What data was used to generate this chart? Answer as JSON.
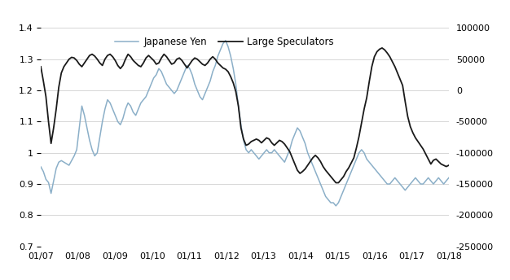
{
  "legend_labels": [
    "Japanese Yen",
    "Large Speculators"
  ],
  "yen_color": "#8bafc8",
  "spec_color": "#1a1a1a",
  "yen_lw": 1.1,
  "spec_lw": 1.3,
  "left_ylim": [
    0.7,
    1.4
  ],
  "right_ylim": [
    -250000,
    100000
  ],
  "left_yticks": [
    0.7,
    0.8,
    0.9,
    1.0,
    1.1,
    1.2,
    1.3,
    1.4
  ],
  "left_yticklabels": [
    "0.7",
    "0.8",
    "0.9",
    "1",
    "1.1",
    "1.2",
    "1.3",
    "1.4"
  ],
  "right_yticks": [
    -250000,
    -200000,
    -150000,
    -100000,
    -50000,
    0,
    50000,
    100000
  ],
  "right_yticklabels": [
    "-250000",
    "-200000",
    "-150000",
    "-100000",
    "-50000",
    "0",
    "50000",
    "100000"
  ],
  "xtick_labels": [
    "01/07",
    "01/08",
    "01/09",
    "01/10",
    "01/11",
    "01/12",
    "01/13",
    "01/14",
    "01/15",
    "01/16",
    "01/17",
    "01/18"
  ],
  "bg_color": "#ffffff",
  "grid_color": "#d0d0d0",
  "yen_data": [
    0.955,
    0.94,
    0.915,
    0.905,
    0.87,
    0.91,
    0.95,
    0.97,
    0.975,
    0.97,
    0.965,
    0.96,
    0.975,
    0.99,
    1.01,
    1.08,
    1.15,
    1.12,
    1.08,
    1.04,
    1.01,
    0.99,
    1.0,
    1.05,
    1.1,
    1.14,
    1.17,
    1.16,
    1.14,
    1.12,
    1.1,
    1.09,
    1.11,
    1.14,
    1.16,
    1.15,
    1.13,
    1.12,
    1.14,
    1.16,
    1.17,
    1.18,
    1.2,
    1.22,
    1.24,
    1.25,
    1.27,
    1.26,
    1.24,
    1.22,
    1.21,
    1.2,
    1.19,
    1.2,
    1.22,
    1.24,
    1.26,
    1.28,
    1.27,
    1.25,
    1.22,
    1.2,
    1.18,
    1.17,
    1.19,
    1.21,
    1.23,
    1.26,
    1.28,
    1.31,
    1.33,
    1.35,
    1.36,
    1.34,
    1.31,
    1.27,
    1.22,
    1.15,
    1.09,
    1.04,
    1.01,
    1.0,
    1.01,
    1.0,
    0.99,
    0.98,
    0.99,
    1.0,
    1.01,
    1.0,
    1.0,
    1.01,
    1.0,
    0.99,
    0.98,
    0.97,
    0.99,
    1.01,
    1.04,
    1.06,
    1.08,
    1.07,
    1.05,
    1.03,
    1.0,
    0.98,
    0.96,
    0.94,
    0.92,
    0.9,
    0.88,
    0.86,
    0.85,
    0.84,
    0.84,
    0.83,
    0.84,
    0.86,
    0.88,
    0.9,
    0.92,
    0.94,
    0.96,
    0.98,
    1.0,
    1.01,
    1.0,
    0.98,
    0.97,
    0.96,
    0.95,
    0.94,
    0.93,
    0.92,
    0.91,
    0.9,
    0.9,
    0.91,
    0.92,
    0.91,
    0.9,
    0.89,
    0.88,
    0.89,
    0.9,
    0.91,
    0.92,
    0.91,
    0.9,
    0.9,
    0.91,
    0.92,
    0.91,
    0.9,
    0.91,
    0.92,
    0.91,
    0.9,
    0.91,
    0.92
  ],
  "spec_data": [
    38000,
    15000,
    -10000,
    -50000,
    -85000,
    -60000,
    -30000,
    5000,
    28000,
    38000,
    44000,
    50000,
    53000,
    52000,
    48000,
    42000,
    38000,
    44000,
    50000,
    56000,
    58000,
    55000,
    50000,
    44000,
    40000,
    50000,
    56000,
    58000,
    54000,
    48000,
    40000,
    35000,
    40000,
    50000,
    58000,
    54000,
    48000,
    44000,
    40000,
    38000,
    44000,
    52000,
    56000,
    52000,
    48000,
    42000,
    44000,
    52000,
    58000,
    54000,
    48000,
    42000,
    44000,
    50000,
    52000,
    48000,
    42000,
    36000,
    42000,
    48000,
    52000,
    50000,
    46000,
    42000,
    40000,
    44000,
    50000,
    54000,
    50000,
    44000,
    40000,
    36000,
    34000,
    30000,
    22000,
    12000,
    -2000,
    -25000,
    -60000,
    -78000,
    -88000,
    -86000,
    -82000,
    -80000,
    -78000,
    -80000,
    -84000,
    -80000,
    -76000,
    -78000,
    -84000,
    -88000,
    -84000,
    -80000,
    -82000,
    -86000,
    -92000,
    -98000,
    -108000,
    -118000,
    -128000,
    -133000,
    -130000,
    -126000,
    -120000,
    -114000,
    -108000,
    -104000,
    -108000,
    -114000,
    -122000,
    -128000,
    -133000,
    -138000,
    -143000,
    -148000,
    -148000,
    -143000,
    -138000,
    -130000,
    -124000,
    -116000,
    -108000,
    -92000,
    -74000,
    -52000,
    -30000,
    -12000,
    14000,
    38000,
    54000,
    62000,
    66000,
    68000,
    65000,
    60000,
    54000,
    46000,
    38000,
    28000,
    18000,
    8000,
    -18000,
    -42000,
    -58000,
    -68000,
    -76000,
    -82000,
    -88000,
    -94000,
    -102000,
    -110000,
    -118000,
    -112000,
    -110000,
    -114000,
    -118000,
    -120000,
    -122000,
    -120000
  ]
}
